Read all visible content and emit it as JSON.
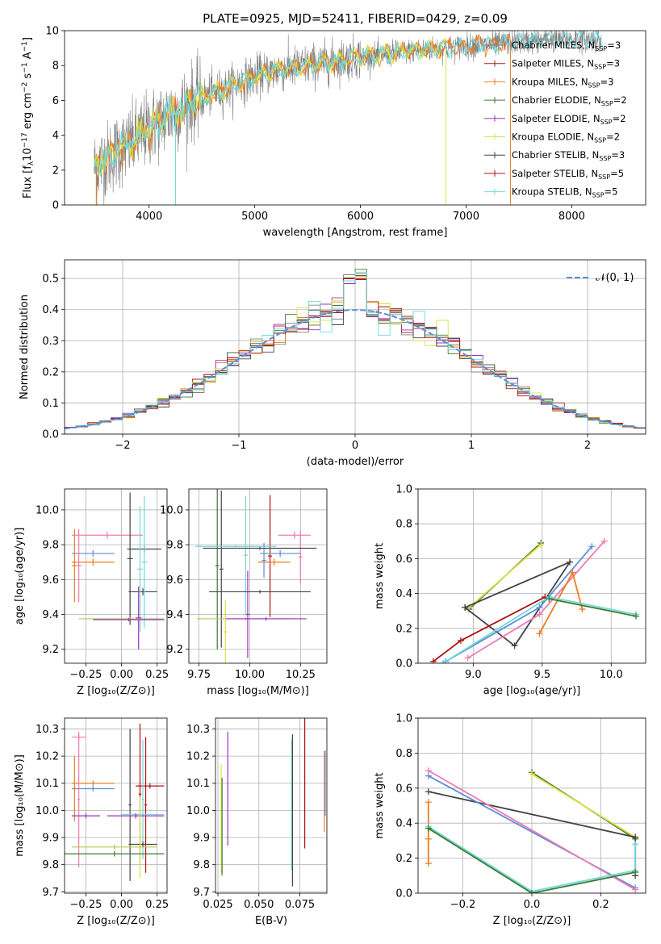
{
  "colors": {
    "chabrier_miles": "#808080",
    "salpeter_miles": "#a02020",
    "kroupa_miles": "#f07c20",
    "chabrier_elodie": "#3c7a32",
    "salpeter_elodie": "#9b30c0",
    "kroupa_elodie": "#e0e040",
    "chabrier_stelib": "#444444",
    "salpeter_stelib": "#b01010",
    "kroupa_stelib": "#70d8d8",
    "blue": "#5b8dd9",
    "pink": "#ec7cb0",
    "olive": "#b8c850",
    "normal": "#5b8dd9"
  },
  "chart_data": [
    {
      "type": "line",
      "id": "spectrum",
      "title": "PLATE=0925, MJD=52411, FIBERID=0429, z=0.09",
      "xlabel": "wavelength [Angstrom, rest frame]",
      "ylabel_main": "Flux [f",
      "ylabel_sub": "λ",
      "ylabel_rest": "10",
      "ylabel_exp": "−17",
      "ylabel_units": " erg cm",
      "ylabel_exp2": "−2",
      "ylabel_s": " s",
      "ylabel_exp3": "−1",
      "ylabel_end": " A",
      "ylabel_exp4": "−1",
      "ylabel_close": "]",
      "xlim": [
        3200,
        8700
      ],
      "ylim": [
        0,
        10
      ],
      "xticks": [
        "4000",
        "5000",
        "6000",
        "7000",
        "8000"
      ],
      "yticks": [
        "0",
        "2",
        "4",
        "6",
        "8",
        "10"
      ],
      "legend_position": "upper-right",
      "legend": [
        {
          "base": "Chabrier MILES, N",
          "sub": "SSP",
          "tail": "=3",
          "color": "chabrier_miles"
        },
        {
          "base": "Salpeter MILES, N",
          "sub": "SSP",
          "tail": "=3",
          "color": "salpeter_miles"
        },
        {
          "base": "Kroupa MILES, N",
          "sub": "SSP",
          "tail": "=3",
          "color": "kroupa_miles"
        },
        {
          "base": "Chabrier ELODIE, N",
          "sub": "SSP",
          "tail": "=2",
          "color": "chabrier_elodie"
        },
        {
          "base": "Salpeter ELODIE, N",
          "sub": "SSP",
          "tail": "=2",
          "color": "salpeter_elodie"
        },
        {
          "base": "Kroupa ELODIE, N",
          "sub": "SSP",
          "tail": "=2",
          "color": "kroupa_elodie"
        },
        {
          "base": "Chabrier STELIB, N",
          "sub": "SSP",
          "tail": "=3",
          "color": "chabrier_stelib"
        },
        {
          "base": "Salpeter STELIB, N",
          "sub": "SSP",
          "tail": "=5",
          "color": "salpeter_stelib"
        },
        {
          "base": "Kroupa STELIB, N",
          "sub": "SSP",
          "tail": "=5",
          "color": "kroupa_stelib"
        }
      ],
      "continuum": {
        "x": [
          3480,
          3600,
          3700,
          3800,
          3900,
          4000,
          4100,
          4200,
          4300,
          4400,
          4500,
          4600,
          4700,
          4800,
          4900,
          5000,
          5200,
          5400,
          5600,
          5800,
          6000,
          6200,
          6400,
          6600,
          6800,
          7000,
          7200,
          7400,
          7600,
          7800,
          8000,
          8200,
          8300
        ],
        "y": [
          2.2,
          2.6,
          3.1,
          3.4,
          3.9,
          4.4,
          4.8,
          5.2,
          5.5,
          5.9,
          6.1,
          6.4,
          6.6,
          6.9,
          7.1,
          7.4,
          7.7,
          7.9,
          8.1,
          8.3,
          8.5,
          8.6,
          8.8,
          8.9,
          9.0,
          9.1,
          9.2,
          9.3,
          9.4,
          9.5,
          9.5,
          9.5,
          9.4
        ]
      }
    },
    {
      "type": "histogram",
      "id": "residuals",
      "xlabel": "(data-model)/error",
      "ylabel": "Normed distribution",
      "xlim": [
        -2.5,
        2.5
      ],
      "ylim": [
        0,
        0.56
      ],
      "xticks": [
        "−2",
        "−1",
        "0",
        "1",
        "2"
      ],
      "yticks": [
        "0.0",
        "0.1",
        "0.2",
        "0.3",
        "0.4",
        "0.5"
      ],
      "legend_position": "upper-right",
      "legend_label": "𝒩(0, 1)",
      "normal_curve": {
        "mean": 0,
        "sigma": 1
      }
    },
    {
      "type": "errorbar",
      "id": "age-vs-Z",
      "xlabel": "Z [log₁₀(Z/Z⊙)]",
      "ylabel": "age  [log₁₀(age/yr)]",
      "xlim": [
        -0.4,
        0.32
      ],
      "ylim": [
        9.12,
        10.12
      ],
      "xticks": [
        "−0.25",
        "0.00",
        "0.25"
      ],
      "yticks": [
        "9.2",
        "9.4",
        "9.6",
        "9.8",
        "10.0"
      ],
      "points": [
        {
          "x": -0.1,
          "y": 9.855,
          "xerr": 0.25,
          "yerr": 0.02,
          "color": "pink"
        },
        {
          "x": -0.2,
          "y": 9.75,
          "xerr": 0.15,
          "yerr": 0.02,
          "color": "blue"
        },
        {
          "x": -0.2,
          "y": 9.7,
          "xerr": 0.15,
          "yerr": 0.02,
          "color": "kroupa_miles"
        },
        {
          "x": -0.33,
          "y": 9.68,
          "xerr": 0.02,
          "yerr": 0.21,
          "color": "kroupa_miles"
        },
        {
          "x": -0.3,
          "y": 9.68,
          "xerr": 0.02,
          "yerr": 0.21,
          "color": "pink"
        },
        {
          "x": 0.06,
          "y": 9.72,
          "xerr": 0.02,
          "yerr": 0.38,
          "color": "chabrier_stelib"
        },
        {
          "x": 0.16,
          "y": 9.775,
          "xerr": 0.12,
          "yerr": 0.02,
          "color": "chabrier_stelib"
        },
        {
          "x": 0.15,
          "y": 9.53,
          "xerr": 0.1,
          "yerr": 0.02,
          "color": "chabrier_stelib"
        },
        {
          "x": 0.13,
          "y": 9.66,
          "xerr": 0.02,
          "yerr": 0.36,
          "color": "kroupa_stelib"
        },
        {
          "x": 0.16,
          "y": 9.7,
          "xerr": 0.02,
          "yerr": 0.38,
          "color": "kroupa_stelib"
        },
        {
          "x": 0.12,
          "y": 9.38,
          "xerr": 0.02,
          "yerr": 0.18,
          "color": "salpeter_elodie"
        },
        {
          "x": 0.0,
          "y": 9.375,
          "xerr": 0.3,
          "yerr": 0.01,
          "color": "olive"
        },
        {
          "x": 0.05,
          "y": 9.37,
          "xerr": 0.25,
          "yerr": 0.01,
          "color": "salpeter_elodie"
        }
      ]
    },
    {
      "type": "errorbar",
      "id": "age-vs-mass",
      "xlabel": "mass [log₁₀(M/M⊙)]",
      "ylabel": "",
      "xlim": [
        9.7,
        10.38
      ],
      "ylim": [
        9.12,
        10.12
      ],
      "xticks": [
        "9.75",
        "10.00",
        "10.25"
      ],
      "yticks": [
        "9.2",
        "9.4",
        "9.6",
        "9.8",
        "10.0"
      ],
      "points": [
        {
          "x": 9.86,
          "y": 9.66,
          "xerr": 0.01,
          "yerr": 0.45,
          "color": "chabrier_stelib"
        },
        {
          "x": 9.84,
          "y": 9.68,
          "xerr": 0.01,
          "yerr": 0.48,
          "color": "chabrier_elodie"
        },
        {
          "x": 9.98,
          "y": 9.74,
          "xerr": 0.01,
          "yerr": 0.34,
          "color": "kroupa_stelib"
        },
        {
          "x": 10.1,
          "y": 9.735,
          "xerr": 0.01,
          "yerr": 0.35,
          "color": "salpeter_stelib"
        },
        {
          "x": 10.22,
          "y": 9.855,
          "xerr": 0.08,
          "yerr": 0.02,
          "color": "pink"
        },
        {
          "x": 10.25,
          "y": 9.73,
          "xerr": 0.01,
          "yerr": 0.15,
          "color": "pink"
        },
        {
          "x": 10.12,
          "y": 9.7,
          "xerr": 0.08,
          "yerr": 0.02,
          "color": "kroupa_miles"
        },
        {
          "x": 10.15,
          "y": 9.75,
          "xerr": 0.1,
          "yerr": 0.02,
          "color": "blue"
        },
        {
          "x": 10.07,
          "y": 9.71,
          "xerr": 0.01,
          "yerr": 0.1,
          "color": "blue"
        },
        {
          "x": 10.05,
          "y": 9.78,
          "xerr": 0.28,
          "yerr": 0.01,
          "color": "chabrier_stelib"
        },
        {
          "x": 9.93,
          "y": 9.79,
          "xerr": 0.2,
          "yerr": 0.01,
          "color": "kroupa_stelib"
        },
        {
          "x": 10.05,
          "y": 9.53,
          "xerr": 0.25,
          "yerr": 0.01,
          "color": "chabrier_stelib"
        },
        {
          "x": 9.98,
          "y": 9.375,
          "xerr": 0.24,
          "yerr": 0.01,
          "color": "olive"
        },
        {
          "x": 10.08,
          "y": 9.375,
          "xerr": 0.2,
          "yerr": 0.01,
          "color": "salpeter_elodie"
        },
        {
          "x": 9.88,
          "y": 9.3,
          "xerr": 0.01,
          "yerr": 0.18,
          "color": "kroupa_elodie"
        },
        {
          "x": 9.99,
          "y": 9.4,
          "xerr": 0.01,
          "yerr": 0.25,
          "color": "salpeter_elodie"
        }
      ]
    },
    {
      "type": "line",
      "id": "weight-vs-age",
      "xlabel": "age  [log₁₀(age/yr)]",
      "ylabel": "mass weight",
      "xlim": [
        8.6,
        10.25
      ],
      "ylim": [
        0,
        1
      ],
      "xticks": [
        "9.0",
        "9.5",
        "10.0"
      ],
      "yticks": [
        "0.0",
        "0.2",
        "0.4",
        "0.6",
        "0.8",
        "1.0"
      ],
      "series": [
        {
          "color": "chabrier_elodie",
          "x": [
            8.97,
            9.49
          ],
          "y": [
            0.31,
            0.69
          ]
        },
        {
          "color": "kroupa_elodie",
          "x": [
            8.97,
            9.49
          ],
          "y": [
            0.32,
            0.68
          ]
        },
        {
          "color": "chabrier_stelib",
          "x": [
            8.94,
            9.3,
            9.7,
            8.94
          ],
          "y": [
            0.32,
            0.1,
            0.58,
            0.32
          ]
        },
        {
          "color": "blue",
          "x": [
            8.8,
            9.48,
            9.86
          ],
          "y": [
            0.01,
            0.32,
            0.67
          ]
        },
        {
          "color": "pink",
          "x": [
            8.96,
            9.48,
            9.95
          ],
          "y": [
            0.03,
            0.28,
            0.7
          ]
        },
        {
          "color": "kroupa_miles",
          "x": [
            9.48,
            9.72,
            9.79
          ],
          "y": [
            0.17,
            0.52,
            0.31
          ]
        },
        {
          "color": "salpeter_stelib",
          "x": [
            8.71,
            8.91,
            9.52
          ],
          "y": [
            0.01,
            0.13,
            0.38
          ]
        },
        {
          "color": "kroupa_stelib",
          "x": [
            8.78,
            9.55,
            10.18
          ],
          "y": [
            0.0,
            0.38,
            0.28
          ]
        },
        {
          "color": "chabrier_elodie",
          "x": [
            9.55,
            10.18
          ],
          "y": [
            0.37,
            0.27
          ]
        }
      ]
    },
    {
      "type": "errorbar",
      "id": "mass-vs-Z",
      "xlabel": "Z [log₁₀(Z/Z⊙)]",
      "ylabel": "mass [log₁₀(M/M⊙)]",
      "xlim": [
        -0.4,
        0.32
      ],
      "ylim": [
        9.695,
        10.34
      ],
      "xticks": [
        "−0.25",
        "0.00",
        "0.25"
      ],
      "yticks": [
        "9.7",
        "9.8",
        "9.9",
        "10.0",
        "10.1",
        "10.2",
        "10.3"
      ],
      "points": [
        {
          "x": -0.3,
          "y": 10.27,
          "xerr": 0.05,
          "yerr": 0.01,
          "color": "pink"
        },
        {
          "x": -0.2,
          "y": 10.1,
          "xerr": 0.15,
          "yerr": 0.01,
          "color": "kroupa_miles"
        },
        {
          "x": -0.2,
          "y": 10.08,
          "xerr": 0.15,
          "yerr": 0.01,
          "color": "blue"
        },
        {
          "x": -0.33,
          "y": 10.08,
          "xerr": 0.01,
          "yerr": 0.12,
          "color": "kroupa_miles"
        },
        {
          "x": -0.3,
          "y": 10.04,
          "xerr": 0.01,
          "yerr": 0.25,
          "color": "pink"
        },
        {
          "x": 0.2,
          "y": 10.09,
          "xerr": 0.1,
          "yerr": 0.01,
          "color": "salpeter_stelib"
        },
        {
          "x": 0.06,
          "y": 10.02,
          "xerr": 0.01,
          "yerr": 0.28,
          "color": "chabrier_stelib"
        },
        {
          "x": 0.13,
          "y": 10.06,
          "xerr": 0.01,
          "yerr": 0.26,
          "color": "salpeter_stelib"
        },
        {
          "x": 0.17,
          "y": 10.02,
          "xerr": 0.01,
          "yerr": 0.25,
          "color": "salpeter_stelib"
        },
        {
          "x": 0.15,
          "y": 10.04,
          "xerr": 0.01,
          "yerr": 0.22,
          "color": "kroupa_stelib"
        },
        {
          "x": -0.25,
          "y": 9.98,
          "xerr": 0.1,
          "yerr": 0.01,
          "color": "salpeter_elodie"
        },
        {
          "x": 0.15,
          "y": 9.985,
          "xerr": 0.15,
          "yerr": 0.01,
          "color": "kroupa_stelib"
        },
        {
          "x": 0.1,
          "y": 9.98,
          "xerr": 0.2,
          "yerr": 0.01,
          "color": "salpeter_elodie"
        },
        {
          "x": 0.15,
          "y": 9.875,
          "xerr": 0.1,
          "yerr": 0.01,
          "color": "chabrier_stelib"
        },
        {
          "x": 0.13,
          "y": 9.9,
          "xerr": 0.01,
          "yerr": 0.15,
          "color": "kroupa_elodie"
        },
        {
          "x": -0.05,
          "y": 9.865,
          "xerr": 0.3,
          "yerr": 0.01,
          "color": "olive"
        },
        {
          "x": -0.05,
          "y": 9.84,
          "xerr": 0.35,
          "yerr": 0.01,
          "color": "chabrier_elodie"
        }
      ]
    },
    {
      "type": "errorbar",
      "id": "mass-vs-ebv",
      "xlabel": "E(B-V)",
      "ylabel": "",
      "xlim": [
        0.0235,
        0.0915
      ],
      "ylim": [
        9.695,
        10.34
      ],
      "xticks": [
        "0.025",
        "0.050",
        "0.075"
      ],
      "yticks": [
        "9.7",
        "9.8",
        "9.9",
        "10.0",
        "10.1",
        "10.2",
        "10.3"
      ],
      "points": [
        {
          "x": 0.027,
          "y": 9.97,
          "xerr": 0.0003,
          "yerr": 0.2,
          "color": "kroupa_elodie"
        },
        {
          "x": 0.0275,
          "y": 9.94,
          "xerr": 0.0003,
          "yerr": 0.18,
          "color": "chabrier_elodie"
        },
        {
          "x": 0.031,
          "y": 10.08,
          "xerr": 0.0003,
          "yerr": 0.21,
          "color": "salpeter_elodie"
        },
        {
          "x": 0.07,
          "y": 10.02,
          "xerr": 0.0003,
          "yerr": 0.24,
          "color": "kroupa_stelib"
        },
        {
          "x": 0.0705,
          "y": 10.0,
          "xerr": 0.0003,
          "yerr": 0.28,
          "color": "chabrier_stelib"
        },
        {
          "x": 0.078,
          "y": 10.1,
          "xerr": 0.0003,
          "yerr": 0.24,
          "color": "salpeter_stelib"
        },
        {
          "x": 0.09,
          "y": 10.07,
          "xerr": 0.0003,
          "yerr": 0.15,
          "color": "kroupa_miles"
        },
        {
          "x": 0.0905,
          "y": 10.1,
          "xerr": 0.0003,
          "yerr": 0.12,
          "color": "blue"
        }
      ]
    },
    {
      "type": "line",
      "id": "weight-vs-Z",
      "xlabel": "Z [log₁₀(Z/Z⊙)]",
      "ylabel": "mass weight",
      "xlim": [
        -0.33,
        0.33
      ],
      "ylim": [
        0,
        1
      ],
      "xticks": [
        "−0.2",
        "0.0",
        "0.2"
      ],
      "yticks": [
        "0.0",
        "0.2",
        "0.4",
        "0.6",
        "0.8",
        "1.0"
      ],
      "series": [
        {
          "color": "chabrier_elodie",
          "x": [
            0.0,
            0.3
          ],
          "y": [
            0.69,
            0.31
          ]
        },
        {
          "color": "kroupa_elodie",
          "x": [
            0.0,
            0.3
          ],
          "y": [
            0.68,
            0.32
          ]
        },
        {
          "color": "chabrier_stelib",
          "x": [
            -0.3,
            0.3,
            0.3
          ],
          "y": [
            0.58,
            0.32,
            0.1
          ]
        },
        {
          "color": "blue",
          "x": [
            -0.3,
            0.3
          ],
          "y": [
            0.67,
            0.03
          ]
        },
        {
          "color": "pink",
          "x": [
            -0.3,
            0.3
          ],
          "y": [
            0.7,
            0.02
          ]
        },
        {
          "color": "kroupa_miles",
          "x": [
            -0.3,
            -0.3,
            -0.3
          ],
          "y": [
            0.52,
            0.31,
            0.17
          ]
        },
        {
          "color": "kroupa_stelib",
          "x": [
            -0.3,
            0.0,
            0.3,
            0.3
          ],
          "y": [
            0.38,
            0.01,
            0.13,
            0.28
          ]
        },
        {
          "color": "chabrier_elodie",
          "x": [
            -0.3,
            0.0,
            0.3
          ],
          "y": [
            0.37,
            0.0,
            0.12
          ]
        }
      ]
    }
  ]
}
